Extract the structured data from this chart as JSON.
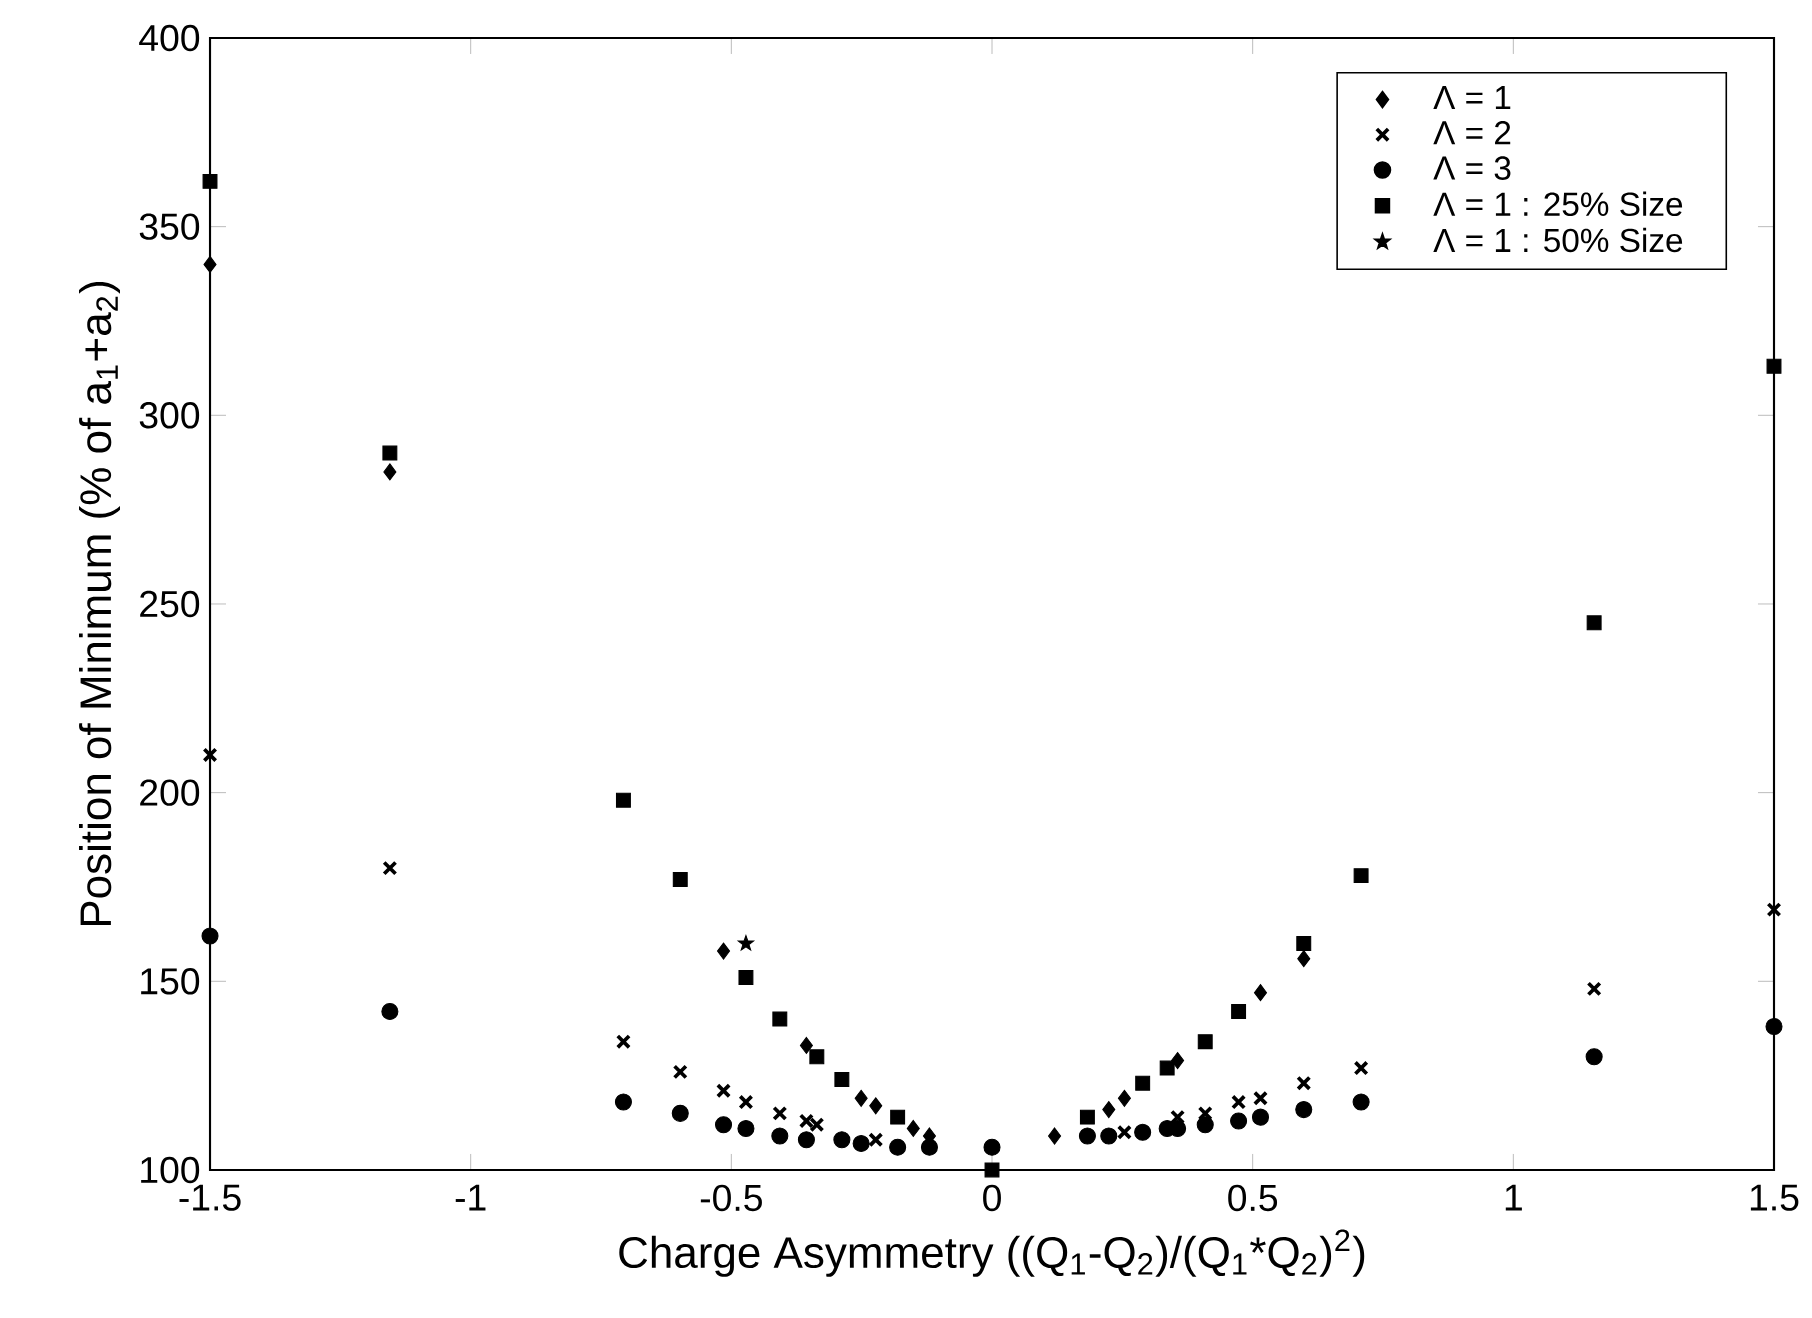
{
  "chart_data": {
    "type": "scatter",
    "xlabel": "Charge Asymmetry ((Q$_{1}$-Q$_{2}$)/(Q$_{1}$*Q$_{2}$)$^{2}$)",
    "ylabel": "Position of Minimum (% of a$_{1}$+a$_{2}$)",
    "xlim": [
      -1.5,
      1.5
    ],
    "ylim": [
      100,
      400
    ],
    "xticks": [
      -1.5,
      -1,
      -0.5,
      0,
      0.5,
      1,
      1.5
    ],
    "yticks": [
      100,
      150,
      200,
      250,
      300,
      350,
      400
    ],
    "grid": false,
    "legend": "top right",
    "series": [
      {
        "name": "Λ = 1",
        "color": "#000000",
        "marker": "diamond",
        "x": [
          -1.5,
          -1.155,
          -0.515,
          -0.356,
          -0.251,
          -0.223,
          -0.151,
          -0.12,
          0.12,
          0.224,
          0.254,
          0.356,
          0.515,
          0.598
        ],
        "values": [
          340,
          285,
          158,
          133,
          119,
          117,
          111,
          109,
          109,
          116,
          119,
          129,
          147,
          156
        ]
      },
      {
        "name": "Λ = 2",
        "color": "#000000",
        "marker": "cross",
        "x": [
          -1.5,
          -1.155,
          -0.707,
          -0.598,
          -0.515,
          -0.472,
          -0.407,
          -0.356,
          -0.336,
          -0.223,
          0.254,
          0.356,
          0.409,
          0.473,
          0.515,
          0.598,
          0.708,
          1.155,
          1.5
        ],
        "values": [
          210,
          180,
          134,
          126,
          121,
          118,
          115,
          113,
          112,
          108,
          110,
          114,
          115,
          118,
          119,
          123,
          127,
          148,
          169
        ]
      },
      {
        "name": "Λ = 3",
        "color": "#000000",
        "marker": "circle",
        "x": [
          -1.5,
          -1.155,
          -0.707,
          -0.598,
          -0.515,
          -0.472,
          -0.407,
          -0.356,
          -0.288,
          -0.251,
          -0.181,
          -0.12,
          0,
          0.183,
          0.224,
          0.289,
          0.336,
          0.356,
          0.409,
          0.473,
          0.515,
          0.598,
          0.708,
          1.155,
          1.5
        ],
        "values": [
          162,
          142,
          118,
          115,
          112,
          111,
          109,
          108,
          108,
          107,
          106,
          106,
          106,
          109,
          109,
          110,
          111,
          111,
          112,
          113,
          114,
          116,
          118,
          130,
          138
        ]
      },
      {
        "name": "Λ = 1 : 25% Size",
        "color": "#000000",
        "marker": "square",
        "x": [
          -1.5,
          -1.155,
          -0.707,
          -0.598,
          -0.472,
          -0.407,
          -0.336,
          -0.288,
          -0.181,
          0,
          0.183,
          0.289,
          0.336,
          0.409,
          0.473,
          0.598,
          0.708,
          1.155,
          1.5
        ],
        "values": [
          362,
          290,
          198,
          177,
          151,
          140,
          130,
          124,
          114,
          100,
          114,
          123,
          127,
          134,
          142,
          160,
          178,
          245,
          313
        ]
      },
      {
        "name": "Λ = 1 : 50% Size",
        "color": "#000000",
        "marker": "star",
        "x": [
          -0.472
        ],
        "values": [
          160
        ]
      }
    ]
  }
}
